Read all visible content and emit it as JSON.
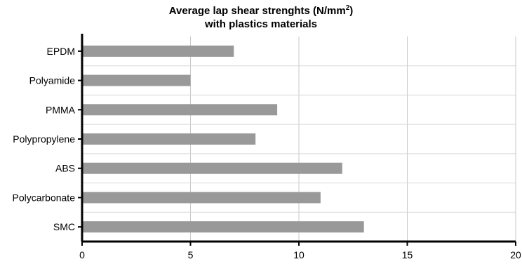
{
  "chart_data": {
    "type": "bar",
    "orientation": "horizontal",
    "title_line1_main": "Average lap shear strenghts (N/mm",
    "title_line1_sup": "2",
    "title_line1_end": ")",
    "title_line2": "with plastics materials",
    "categories": [
      "EPDM",
      "Polyamide",
      "PMMA",
      "Polypropylene",
      "ABS",
      "Polycarbonate",
      "SMC"
    ],
    "values": [
      7,
      5,
      9,
      8,
      12,
      11,
      13
    ],
    "xlim": [
      0,
      20
    ],
    "xticks": [
      "0",
      "5",
      "10",
      "15",
      "20"
    ],
    "xlabel": "",
    "ylabel": "",
    "grid": true,
    "bar_color": "#999999"
  }
}
